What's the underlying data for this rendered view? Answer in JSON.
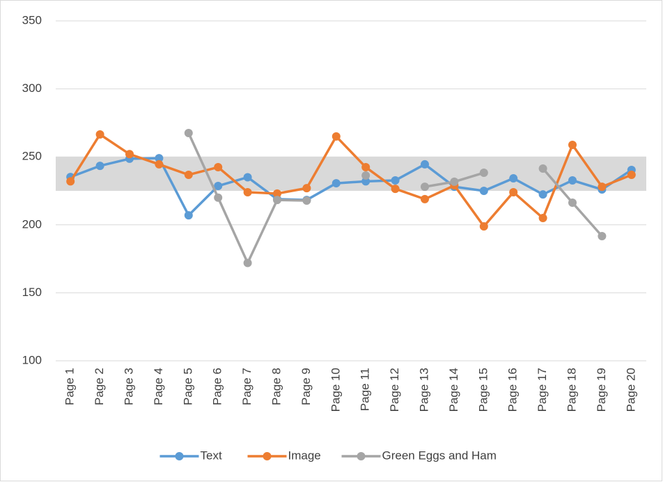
{
  "chart_data": {
    "type": "line",
    "categories": [
      "Page 1",
      "Page 2",
      "Page 3",
      "Page 4",
      "Page 5",
      "Page 6",
      "Page 7",
      "Page 8",
      "Page 9",
      "Page 10",
      "Page 11",
      "Page 12",
      "Page 13",
      "Page 14",
      "Page 15",
      "Page 16",
      "Page 17",
      "Page 18",
      "Page 19",
      "Page 20"
    ],
    "series": [
      {
        "name": "Text",
        "color": "#5b9bd5",
        "values": [
          235.2,
          243.4,
          248.6,
          249,
          207,
          228.6,
          235,
          218.9,
          218.3,
          230.6,
          232,
          232.7,
          244.5,
          228,
          225,
          234.2,
          222.4,
          232.7,
          226,
          240.4
        ]
      },
      {
        "name": "Image",
        "color": "#ed7d31",
        "values": [
          232,
          266.5,
          252,
          244.5,
          236.8,
          242.4,
          224,
          223,
          227,
          265,
          242.4,
          226.5,
          218.9,
          229,
          198.9,
          224,
          205,
          258.8,
          228,
          236.8
        ]
      },
      {
        "name": "Green Eggs and Ham",
        "color": "#a5a5a5",
        "values": [
          null,
          null,
          null,
          null,
          267.5,
          220,
          172,
          218.3,
          217.8,
          null,
          236.3,
          null,
          228,
          231.7,
          238.3,
          null,
          241.4,
          216.3,
          191.7,
          null
        ]
      }
    ],
    "band": {
      "from": 225,
      "to": 250,
      "color": "#d9d9d9"
    },
    "ylim": [
      100,
      350
    ],
    "yticks": [
      100,
      150,
      200,
      250,
      300,
      350
    ],
    "grid": true,
    "legend": "bottom"
  }
}
